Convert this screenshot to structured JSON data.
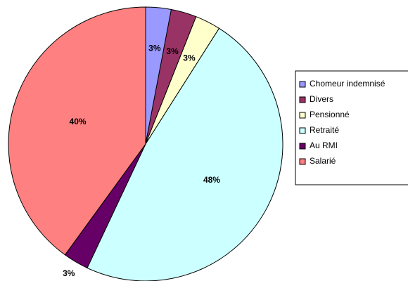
{
  "chart_data": {
    "type": "pie",
    "categories": [
      "Chomeur indemnisé",
      "Divers",
      "Pensionné",
      "Retraité",
      "Au RMI",
      "Salarié"
    ],
    "values": [
      3,
      3,
      3,
      48,
      3,
      40
    ],
    "value_labels": [
      "3%",
      "3%",
      "3%",
      "48%",
      "3%",
      "40%"
    ],
    "colors": [
      "#9999ff",
      "#993366",
      "#ffffcc",
      "#ccffff",
      "#660066",
      "#ff8080"
    ],
    "legend": "right"
  }
}
